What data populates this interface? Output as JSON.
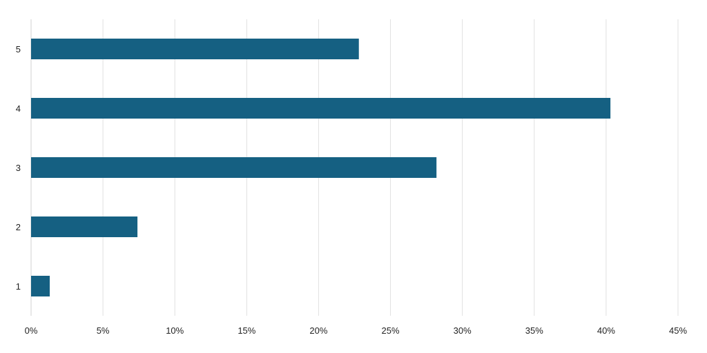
{
  "chart_data": {
    "type": "bar",
    "orientation": "horizontal",
    "categories": [
      "5",
      "4",
      "3",
      "2",
      "1"
    ],
    "values": [
      22.8,
      40.3,
      28.2,
      7.4,
      1.3
    ],
    "x_unit": "%",
    "xlim": [
      0,
      45
    ],
    "xticks": [
      0,
      5,
      10,
      15,
      20,
      25,
      30,
      35,
      40,
      45
    ],
    "xtick_labels": [
      "0%",
      "5%",
      "10%",
      "15%",
      "20%",
      "25%",
      "30%",
      "35%",
      "40%",
      "45%"
    ],
    "title": "",
    "xlabel": "",
    "ylabel": "",
    "grid": "vertical",
    "legend": "none",
    "bar_color": "#156082"
  }
}
